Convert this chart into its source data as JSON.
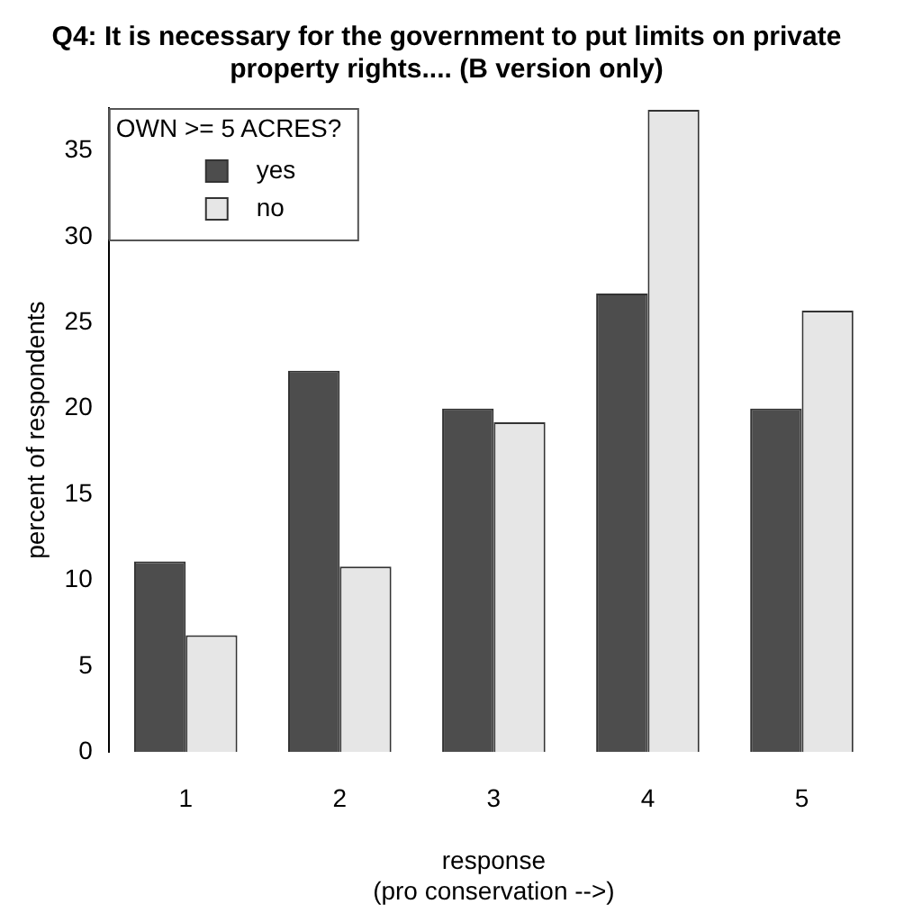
{
  "chart_data": {
    "type": "bar",
    "title": "Q4: It is necessary for the government to put limits on private property rights.... (B version only)",
    "xlabel": "response\n(pro conservation -->)",
    "ylabel": "percent of respondents",
    "legend_title": "OWN >= 5 ACRES?",
    "categories": [
      "1",
      "2",
      "3",
      "4",
      "5"
    ],
    "series": [
      {
        "name": "yes",
        "color": "#4d4d4d",
        "values": [
          11.1,
          22.2,
          20.0,
          26.7,
          20.0
        ]
      },
      {
        "name": "no",
        "color": "#e6e6e6",
        "values": [
          6.8,
          10.8,
          19.2,
          37.4,
          25.7
        ]
      }
    ],
    "ylim": [
      0,
      37.5
    ],
    "yticks": [
      0,
      5,
      10,
      15,
      20,
      25,
      30,
      35
    ],
    "grid": false,
    "legend": "top left"
  }
}
